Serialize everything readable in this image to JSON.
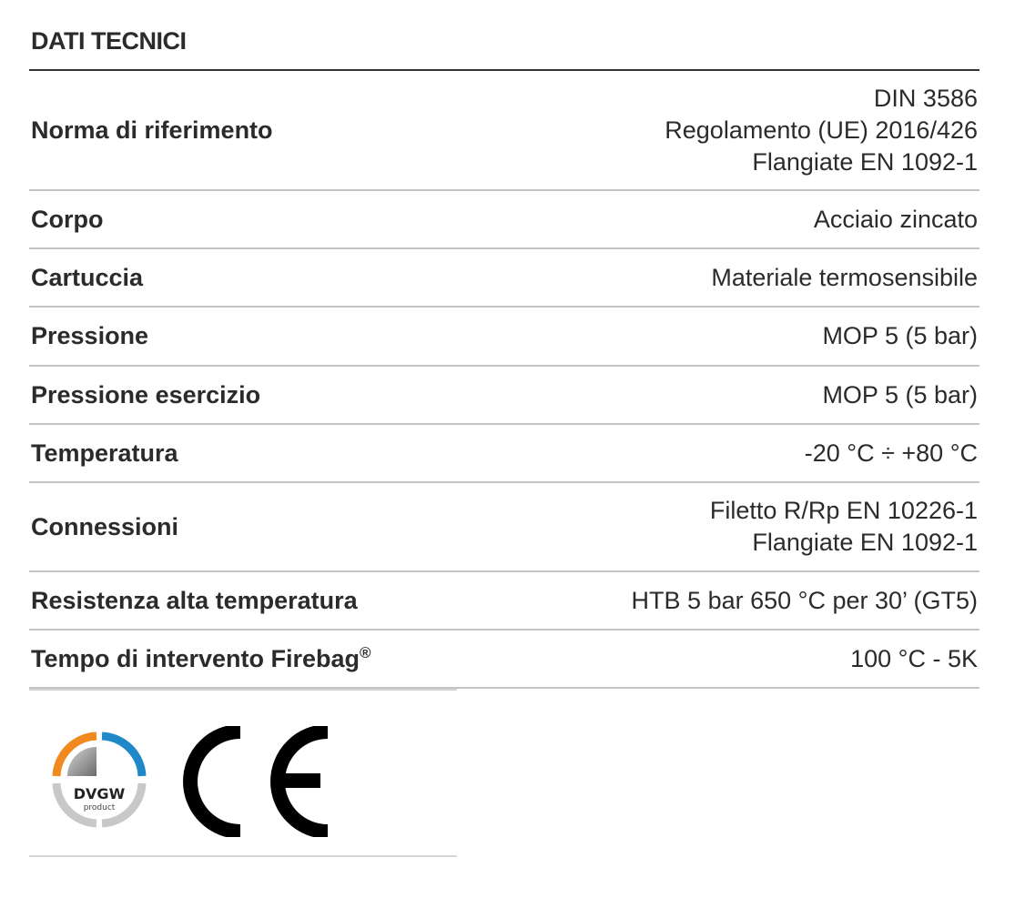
{
  "title": "DATI TECNICI",
  "rows": [
    {
      "label": "Norma di riferimento",
      "values": [
        "DIN 3586",
        "Regolamento (UE) 2016/426",
        "Flangiate EN 1092-1"
      ]
    },
    {
      "label": "Corpo",
      "values": [
        "Acciaio zincato"
      ]
    },
    {
      "label": "Cartuccia",
      "values": [
        "Materiale termosensibile"
      ]
    },
    {
      "label": "Pressione",
      "values": [
        "MOP 5 (5 bar)"
      ]
    },
    {
      "label": "Pressione esercizio",
      "values": [
        "MOP 5 (5 bar)"
      ]
    },
    {
      "label": "Temperatura",
      "values": [
        "-20 °C ÷ +80 °C"
      ]
    },
    {
      "label": "Connessioni",
      "values": [
        "Filetto R/Rp EN 10226-1",
        "Flangiate EN 1092-1"
      ]
    },
    {
      "label": "Resistenza alta temperatura",
      "values": [
        "HTB 5 bar 650 °C per 30’ (GT5)"
      ]
    },
    {
      "label": "Tempo di intervento Firebag",
      "label_sup": "®",
      "values": [
        "100 °C - 5K"
      ]
    }
  ],
  "logos": {
    "dvgw": {
      "text": "DVGW",
      "subtext": "product",
      "colors": {
        "orange": "#f08a1e",
        "blue": "#1e88c8",
        "gray": "#c8c8c8"
      }
    },
    "ce": {
      "text": "CE"
    }
  }
}
